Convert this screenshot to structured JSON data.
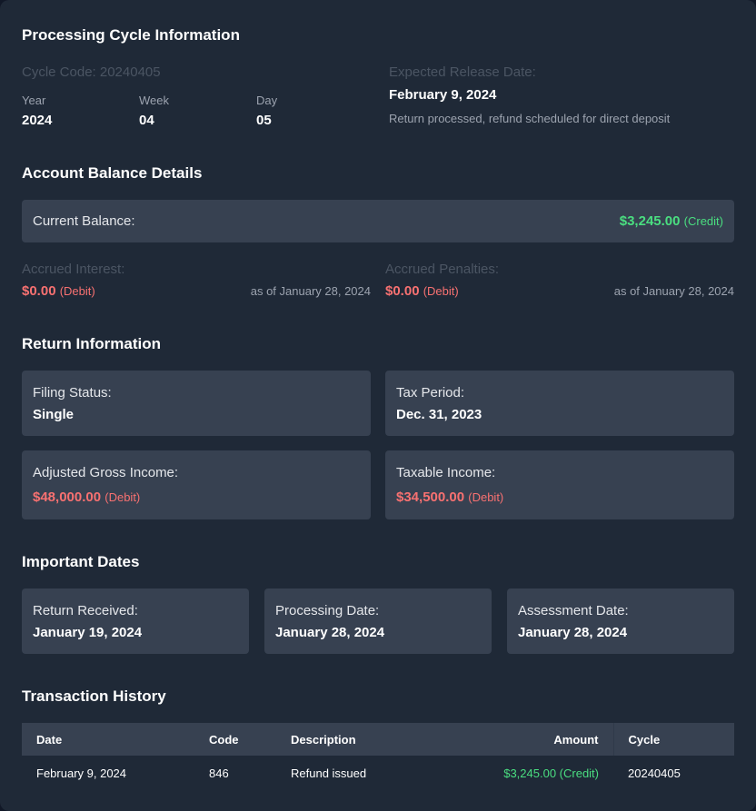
{
  "cycle": {
    "heading": "Processing Cycle Information",
    "cycle_code": "Cycle Code: 20240405",
    "year_label": "Year",
    "year": "2024",
    "week_label": "Week",
    "week": "04",
    "day_label": "Day",
    "day": "05",
    "release_label": "Expected Release Date:",
    "release_date": "February 9, 2024",
    "release_note": "Return processed, refund scheduled for direct deposit"
  },
  "balance": {
    "heading": "Account Balance Details",
    "current_label": "Current Balance:",
    "current_amount": "$3,245.00",
    "current_type": "(Credit)",
    "interest_label": "Accrued Interest:",
    "interest_amount": "$0.00",
    "interest_type": "(Debit)",
    "interest_asof": "as of January 28, 2024",
    "penalties_label": "Accrued Penalties:",
    "penalties_amount": "$0.00",
    "penalties_type": "(Debit)",
    "penalties_asof": "as of January 28, 2024"
  },
  "return_info": {
    "heading": "Return Information",
    "filing_label": "Filing Status:",
    "filing": "Single",
    "period_label": "Tax Period:",
    "period": "Dec. 31, 2023",
    "agi_label": "Adjusted Gross Income:",
    "agi": "$48,000.00",
    "agi_type": "(Debit)",
    "taxable_label": "Taxable Income:",
    "taxable": "$34,500.00",
    "taxable_type": "(Debit)"
  },
  "dates": {
    "heading": "Important Dates",
    "received_label": "Return Received:",
    "received": "January 19, 2024",
    "processing_label": "Processing Date:",
    "processing": "January 28, 2024",
    "assessment_label": "Assessment Date:",
    "assessment": "January 28, 2024"
  },
  "transactions": {
    "heading": "Transaction History",
    "columns": [
      "Date",
      "Code",
      "Description",
      "Amount",
      "Cycle"
    ],
    "rows": [
      {
        "date": "February 9, 2024",
        "code": "846",
        "description": "Refund issued",
        "amount": "$3,245.00 (Credit)",
        "cycle": "20240405"
      }
    ]
  },
  "colors": {
    "background": "#1f2937",
    "card": "#374151",
    "credit": "#4ade80",
    "debit": "#f87171"
  }
}
